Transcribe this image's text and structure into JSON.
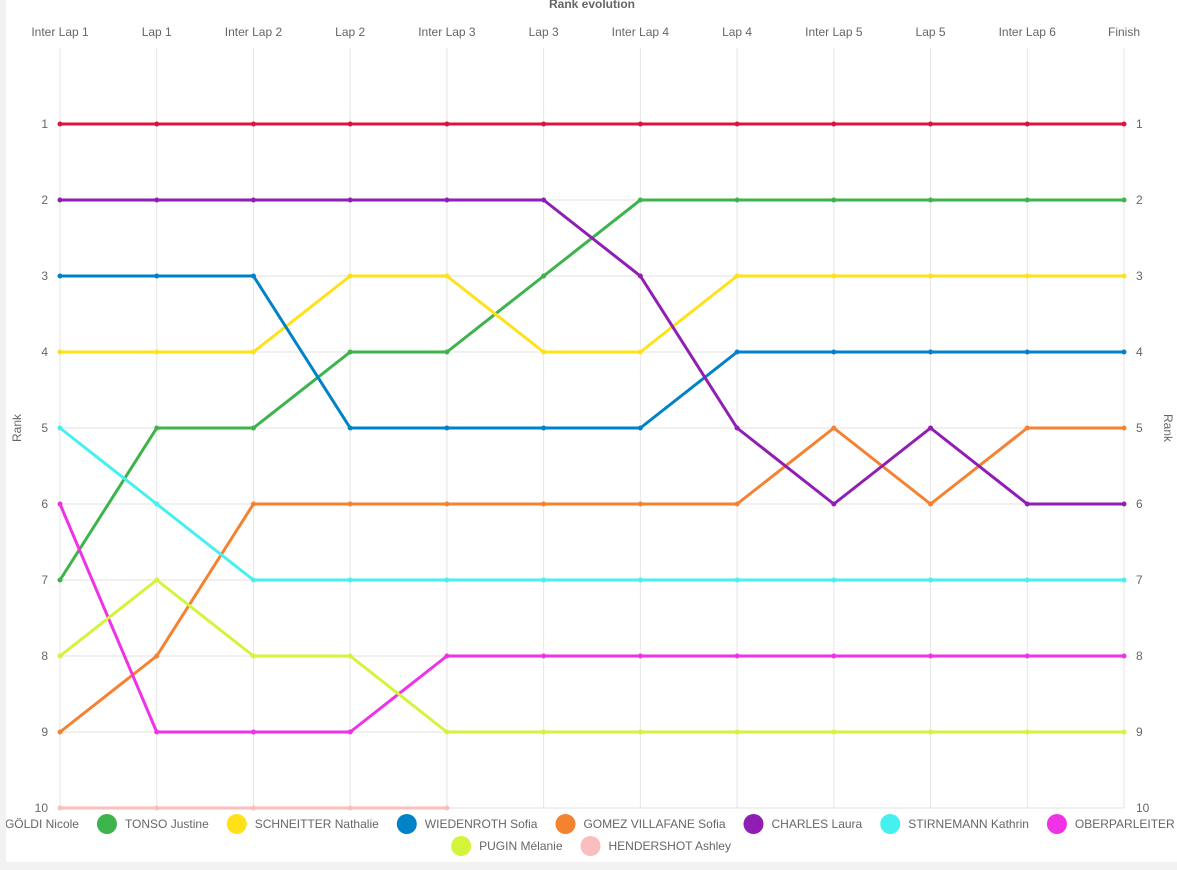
{
  "chart_data": {
    "type": "line",
    "title": "Rank evolution",
    "ylabel": "Rank",
    "ylabel_right": "Rank",
    "ylim": [
      0,
      10
    ],
    "y_reversed": true,
    "grid": true,
    "legend_position": "bottom",
    "x": [
      "Inter Lap 1",
      "Lap 1",
      "Inter Lap 2",
      "Lap 2",
      "Inter Lap 3",
      "Lap 3",
      "Inter Lap 4",
      "Lap 4",
      "Inter Lap 5",
      "Lap 5",
      "Inter Lap 6",
      "Finish"
    ],
    "y_ticks": [
      "1",
      "2",
      "3",
      "4",
      "5",
      "6",
      "7",
      "8",
      "9",
      "10"
    ],
    "series": [
      {
        "name": "GÖLDI Nicole",
        "color": "#dc143c",
        "values": [
          1,
          1,
          1,
          1,
          1,
          1,
          1,
          1,
          1,
          1,
          1,
          1
        ]
      },
      {
        "name": "TONSO Justine",
        "color": "#3cb44b",
        "values": [
          7,
          5,
          5,
          4,
          4,
          3,
          2,
          2,
          2,
          2,
          2,
          2
        ]
      },
      {
        "name": "SCHNEITTER Nathalie",
        "color": "#ffe119",
        "values": [
          4,
          4,
          4,
          3,
          3,
          4,
          4,
          3,
          3,
          3,
          3,
          3
        ]
      },
      {
        "name": "WIEDENROTH Sofia",
        "color": "#0082c8",
        "values": [
          3,
          3,
          3,
          5,
          5,
          5,
          5,
          4,
          4,
          4,
          4,
          4
        ]
      },
      {
        "name": "GOMEZ VILLAFANE Sofia",
        "color": "#f58231",
        "values": [
          9,
          8,
          6,
          6,
          6,
          6,
          6,
          6,
          5,
          6,
          5,
          5
        ]
      },
      {
        "name": "CHARLES Laura",
        "color": "#911eb4",
        "values": [
          2,
          2,
          2,
          2,
          2,
          2,
          3,
          5,
          6,
          5,
          6,
          6
        ]
      },
      {
        "name": "STIRNEMANN Kathrin",
        "color": "#46f0f0",
        "values": [
          5,
          6,
          7,
          7,
          7,
          7,
          7,
          7,
          7,
          7,
          7,
          7
        ]
      },
      {
        "name": "OBERPARLEITER Anna",
        "color": "#f032e6",
        "values": [
          6,
          9,
          9,
          9,
          8,
          8,
          8,
          8,
          8,
          8,
          8,
          8
        ]
      },
      {
        "name": "PUGIN Mélanie",
        "color": "#d2f53c",
        "values": [
          8,
          7,
          8,
          8,
          9,
          9,
          9,
          9,
          9,
          9,
          9,
          9
        ]
      },
      {
        "name": "HENDERSHOT Ashley",
        "color": "#fabebe",
        "values": [
          10,
          10,
          10,
          10,
          10,
          null,
          null,
          null,
          null,
          null,
          null,
          null
        ]
      }
    ]
  }
}
